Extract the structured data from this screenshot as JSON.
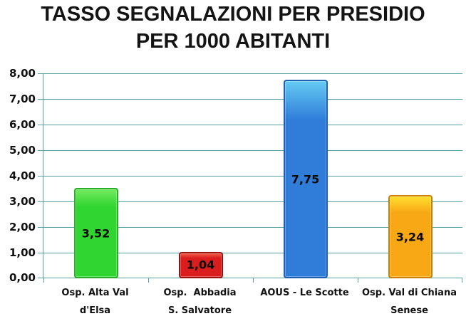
{
  "chart_data": {
    "type": "bar",
    "title": "TASSO SEGNALAZIONI PER PRESIDIO PER 1000 ABITANTI",
    "title_lines": [
      "TASSO SEGNALAZIONI PER PRESIDIO",
      "PER 1000 ABITANTI"
    ],
    "categories": [
      "Osp. Alta Val d'Elsa",
      "Osp.  Abbadia S. Salvatore",
      "AOUS - Le Scotte",
      "Osp. Val di Chiana Senese"
    ],
    "category_lines": [
      [
        "Osp. Alta Val",
        "d'Elsa"
      ],
      [
        "Osp.  Abbadia",
        "S. Salvatore"
      ],
      [
        "AOUS - Le Scotte"
      ],
      [
        "Osp. Val di Chiana",
        "Senese"
      ]
    ],
    "values": [
      3.52,
      1.04,
      7.75,
      3.24
    ],
    "value_labels": [
      "3,52",
      "1,04",
      "7,75",
      "3,24"
    ],
    "xlabel": "",
    "ylabel": "",
    "ylim": [
      0,
      8
    ],
    "ytick_step": 1.0,
    "ytick_labels": [
      "8,00",
      "7,00",
      "6,00",
      "5,00",
      "4,00",
      "3,00",
      "2,00",
      "1,00",
      "0,00"
    ],
    "grid": true,
    "legend": false,
    "colors": {
      "gridline": "#55a2a6",
      "axis": "#55a2a6",
      "title_text": "#141414",
      "label_text": "#111111",
      "bars": [
        {
          "name": "green",
          "fill": "#31d531",
          "highlight": "#74ea5f",
          "border": "#28ad28"
        },
        {
          "name": "red",
          "fill": "#da1d1d",
          "highlight": "#f0604a",
          "border": "#9e1010"
        },
        {
          "name": "blue",
          "fill": "#2f7cd9",
          "highlight": "#63caf2",
          "border": "#1d5fb0"
        },
        {
          "name": "orange",
          "fill": "#f7a814",
          "highlight": "#ffdf2e",
          "border": "#cf7f04"
        }
      ]
    }
  }
}
